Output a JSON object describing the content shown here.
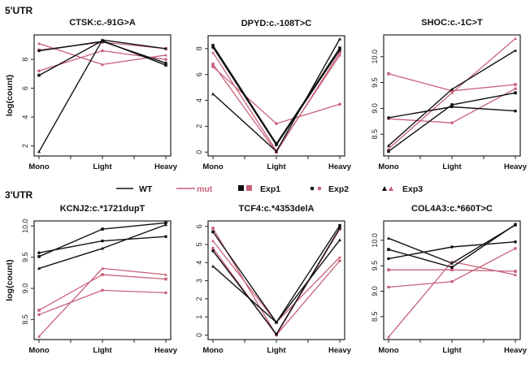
{
  "sections": [
    {
      "label": "5'UTR"
    },
    {
      "label": "3'UTR"
    }
  ],
  "colors": {
    "WT": "#111111",
    "mut": "#c8617a"
  },
  "legend": [
    {
      "label": "WT",
      "kind": "line",
      "group": "WT"
    },
    {
      "label": "mut",
      "kind": "line",
      "group": "mut"
    },
    {
      "label": "Exp1",
      "kind": "marker",
      "marker": "square"
    },
    {
      "label": "Exp2",
      "kind": "marker",
      "marker": "circle"
    },
    {
      "label": "Exp3",
      "kind": "marker",
      "marker": "triangle"
    }
  ],
  "chart_data": [
    {
      "type": "line",
      "section": "5'UTR",
      "title": "CTSK:c.-91G>A",
      "ylabel": "log(count)",
      "categories": [
        "Mono",
        "Light",
        "Heavy"
      ],
      "ylim": [
        1.3,
        9.7
      ],
      "yticks": [
        2,
        4,
        6,
        8
      ],
      "ytick_labels": [
        "2",
        "4",
        "6",
        "8"
      ],
      "series": [
        {
          "name": "WT Exp1",
          "group": "WT",
          "marker": "square",
          "values": [
            6.9,
            9.3,
            7.6
          ]
        },
        {
          "name": "WT Exp2",
          "group": "WT",
          "marker": "circle",
          "values": [
            8.6,
            9.25,
            7.75
          ]
        },
        {
          "name": "WT Exp3",
          "group": "WT",
          "marker": "triangle",
          "values": [
            1.6,
            9.35,
            8.75
          ]
        },
        {
          "name": "mut Exp1",
          "group": "mut",
          "marker": "square",
          "values": [
            8.65,
            9.2,
            8.75
          ]
        },
        {
          "name": "mut Exp2",
          "group": "mut",
          "marker": "circle",
          "values": [
            7.2,
            8.6,
            8.0
          ]
        },
        {
          "name": "mut Exp3",
          "group": "mut",
          "marker": "triangle",
          "values": [
            9.1,
            7.65,
            8.3
          ]
        }
      ]
    },
    {
      "type": "line",
      "section": "5'UTR",
      "title": "DPYD:c.-108T>C",
      "ylabel": "",
      "categories": [
        "Mono",
        "Light",
        "Heavy"
      ],
      "ylim": [
        -0.3,
        9.0
      ],
      "yticks": [
        0,
        2,
        4,
        6,
        8
      ],
      "ytick_labels": [
        "0",
        "2",
        "4",
        "6",
        "8"
      ],
      "series": [
        {
          "name": "WT Exp1",
          "group": "WT",
          "marker": "square",
          "values": [
            8.25,
            0.65,
            8.05
          ]
        },
        {
          "name": "WT Exp2",
          "group": "WT",
          "marker": "circle",
          "values": [
            8.1,
            0.55,
            7.9
          ]
        },
        {
          "name": "WT Exp3",
          "group": "WT",
          "marker": "triangle",
          "values": [
            4.5,
            0.05,
            8.75
          ]
        },
        {
          "name": "mut Exp1",
          "group": "mut",
          "marker": "square",
          "values": [
            6.8,
            0.0,
            7.7
          ]
        },
        {
          "name": "mut Exp2",
          "group": "mut",
          "marker": "circle",
          "values": [
            6.6,
            2.2,
            3.7
          ]
        },
        {
          "name": "mut Exp3",
          "group": "mut",
          "marker": "triangle",
          "values": [
            7.7,
            0.1,
            7.5
          ]
        }
      ]
    },
    {
      "type": "line",
      "section": "5'UTR",
      "title": "SHOC:c.-1C>T",
      "ylabel": "",
      "categories": [
        "Mono",
        "Light",
        "Heavy"
      ],
      "ylim": [
        8.08,
        10.42
      ],
      "yticks": [
        8.5,
        9.0,
        9.5,
        10.0
      ],
      "ytick_labels": [
        "8.5",
        "9.0",
        "9.5",
        "10.0"
      ],
      "series": [
        {
          "name": "WT Exp1",
          "group": "WT",
          "marker": "square",
          "values": [
            8.17,
            9.07,
            9.3
          ]
        },
        {
          "name": "WT Exp2",
          "group": "WT",
          "marker": "circle",
          "values": [
            8.82,
            9.03,
            8.95
          ]
        },
        {
          "name": "WT Exp3",
          "group": "WT",
          "marker": "triangle",
          "values": [
            8.28,
            9.37,
            10.12
          ]
        },
        {
          "name": "mut Exp1",
          "group": "mut",
          "marker": "square",
          "values": [
            9.67,
            9.34,
            9.46
          ]
        },
        {
          "name": "mut Exp2",
          "group": "mut",
          "marker": "circle",
          "values": [
            8.8,
            8.72,
            9.38
          ]
        },
        {
          "name": "mut Exp3",
          "group": "mut",
          "marker": "triangle",
          "values": [
            8.22,
            9.3,
            10.35
          ]
        }
      ]
    },
    {
      "type": "line",
      "section": "3'UTR",
      "title": "KCNJ2:c.*1721dupT",
      "ylabel": "log(count)",
      "categories": [
        "Mono",
        "Light",
        "Heavy"
      ],
      "ylim": [
        8.18,
        10.08
      ],
      "yticks": [
        8.5,
        9.0,
        9.5,
        10.0
      ],
      "ytick_labels": [
        "8.5",
        "9.0",
        "9.5",
        "10.0"
      ],
      "series": [
        {
          "name": "WT Exp1",
          "group": "WT",
          "marker": "square",
          "values": [
            9.51,
            9.95,
            10.05
          ]
        },
        {
          "name": "WT Exp2",
          "group": "WT",
          "marker": "circle",
          "values": [
            9.57,
            9.76,
            9.83
          ]
        },
        {
          "name": "WT Exp3",
          "group": "WT",
          "marker": "triangle",
          "values": [
            9.32,
            9.64,
            10.02
          ]
        },
        {
          "name": "mut Exp1",
          "group": "mut",
          "marker": "square",
          "values": [
            8.65,
            9.22,
            9.15
          ]
        },
        {
          "name": "mut Exp2",
          "group": "mut",
          "marker": "circle",
          "values": [
            8.58,
            8.97,
            8.93
          ]
        },
        {
          "name": "mut Exp3",
          "group": "mut",
          "marker": "triangle",
          "values": [
            8.23,
            9.32,
            9.22
          ]
        }
      ]
    },
    {
      "type": "line",
      "section": "3'UTR",
      "title": "TCF4:c.*4353delA",
      "ylabel": "",
      "categories": [
        "Mono",
        "Light",
        "Heavy"
      ],
      "ylim": [
        -0.25,
        6.3
      ],
      "yticks": [
        0,
        1,
        2,
        3,
        4,
        5,
        6
      ],
      "ytick_labels": [
        "0",
        "1",
        "2",
        "3",
        "4",
        "5",
        "6"
      ],
      "series": [
        {
          "name": "WT Exp1",
          "group": "WT",
          "marker": "square",
          "values": [
            5.7,
            0.7,
            6.05
          ]
        },
        {
          "name": "WT Exp2",
          "group": "WT",
          "marker": "circle",
          "values": [
            4.65,
            0.05,
            5.9
          ]
        },
        {
          "name": "WT Exp3",
          "group": "WT",
          "marker": "triangle",
          "values": [
            3.8,
            0.7,
            5.25
          ]
        },
        {
          "name": "mut Exp1",
          "group": "mut",
          "marker": "square",
          "values": [
            5.9,
            0.0,
            5.85
          ]
        },
        {
          "name": "mut Exp2",
          "group": "mut",
          "marker": "circle",
          "values": [
            4.8,
            0.0,
            4.1
          ]
        },
        {
          "name": "mut Exp3",
          "group": "mut",
          "marker": "triangle",
          "values": [
            5.2,
            0.7,
            4.3
          ]
        }
      ]
    },
    {
      "type": "line",
      "section": "3'UTR",
      "title": "COL4A3:c.*660T>C",
      "ylabel": "",
      "categories": [
        "Mono",
        "Light",
        "Heavy"
      ],
      "ylim": [
        8.05,
        10.38
      ],
      "yticks": [
        8.5,
        9.0,
        9.5,
        10.0
      ],
      "ytick_labels": [
        "8.5",
        "9.0",
        "9.5",
        "10.0"
      ],
      "series": [
        {
          "name": "WT Exp1",
          "group": "WT",
          "marker": "square",
          "values": [
            9.82,
            9.47,
            10.31
          ]
        },
        {
          "name": "WT Exp2",
          "group": "WT",
          "marker": "circle",
          "values": [
            9.64,
            9.87,
            9.97
          ]
        },
        {
          "name": "WT Exp3",
          "group": "WT",
          "marker": "triangle",
          "values": [
            10.04,
            9.55,
            10.3
          ]
        },
        {
          "name": "mut Exp1",
          "group": "mut",
          "marker": "square",
          "values": [
            9.42,
            9.42,
            9.39
          ]
        },
        {
          "name": "mut Exp2",
          "group": "mut",
          "marker": "circle",
          "values": [
            9.08,
            9.19,
            9.84
          ]
        },
        {
          "name": "mut Exp3",
          "group": "mut",
          "marker": "triangle",
          "values": [
            8.1,
            9.58,
            9.32
          ]
        }
      ]
    }
  ]
}
